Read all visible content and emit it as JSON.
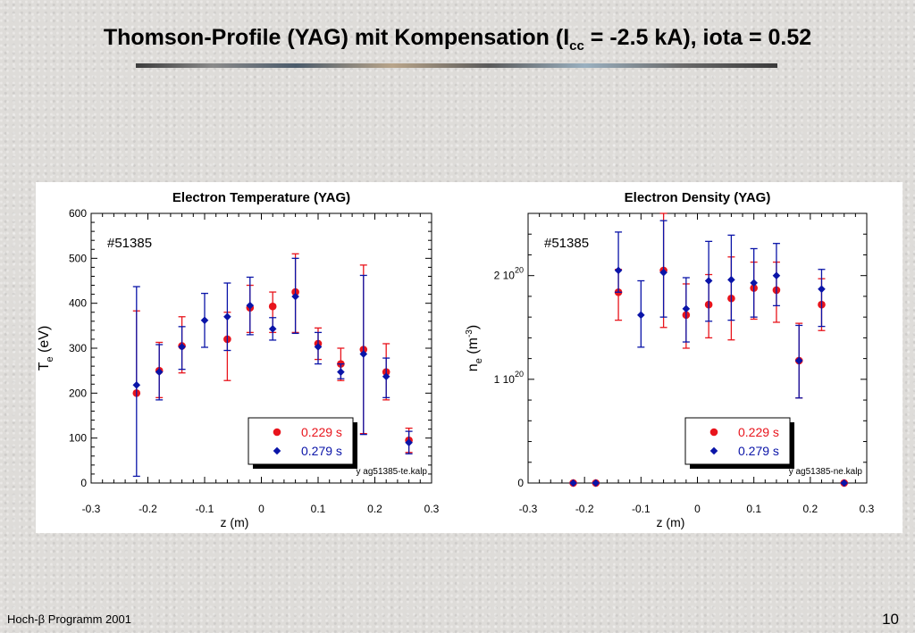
{
  "slide": {
    "title_prefix": "Thomson-Profile (YAG) mit Kompensation (I",
    "title_sub": "cc",
    "title_suffix": " = -2.5 kA), iota = 0.52",
    "footer": "Hoch-β Programm 2001",
    "page_number": "10"
  },
  "colors": {
    "red": "#e8141c",
    "blue": "#0a14a8"
  },
  "chart_data": [
    {
      "type": "scatter",
      "title": "Electron Temperature (YAG)",
      "xlabel": "z (m)",
      "ylabel_main": "T",
      "ylabel_sub": "e",
      "ylabel_unit": "(eV)",
      "annotation": "#51385",
      "file_label": "y ag51385-te.kalp",
      "xlim": [
        -0.3,
        0.3
      ],
      "ylim": [
        0,
        600
      ],
      "x_ticks": [
        -0.3,
        -0.2,
        -0.1,
        0,
        0.1,
        0.2,
        0.3
      ],
      "x_tick_labels": [
        "-0.3",
        "-0.2",
        "-0.1",
        "0",
        "0.1",
        "0.2",
        "0.3"
      ],
      "y_ticks": [
        0,
        100,
        200,
        300,
        400,
        500,
        600
      ],
      "y_tick_labels": [
        "0",
        "100",
        "200",
        "300",
        "400",
        "500",
        "600"
      ],
      "legend_position": "bottom-right",
      "series": [
        {
          "name": "0.229 s",
          "marker": "circle",
          "color": "#e8141c",
          "x": [
            -0.22,
            -0.18,
            -0.14,
            -0.06,
            -0.02,
            0.02,
            0.06,
            0.1,
            0.14,
            0.18,
            0.22,
            0.26
          ],
          "y": [
            200,
            250,
            305,
            320,
            390,
            393,
            425,
            310,
            265,
            297,
            247,
            95
          ],
          "err_low": [
            200,
            190,
            245,
            228,
            335,
            335,
            335,
            275,
            228,
            110,
            185,
            68
          ],
          "err_high": [
            383,
            313,
            370,
            380,
            440,
            425,
            510,
            345,
            300,
            485,
            310,
            122
          ]
        },
        {
          "name": "0.279 s",
          "marker": "diamond",
          "color": "#0a14a8",
          "x": [
            -0.22,
            -0.18,
            -0.14,
            -0.1,
            -0.06,
            -0.02,
            0.02,
            0.06,
            0.1,
            0.14,
            0.18,
            0.22,
            0.26
          ],
          "y": [
            218,
            247,
            303,
            362,
            370,
            395,
            343,
            415,
            303,
            247,
            287,
            237,
            90
          ],
          "err_low": [
            15,
            185,
            253,
            302,
            295,
            330,
            318,
            333,
            265,
            232,
            108,
            190,
            65
          ],
          "err_high": [
            437,
            308,
            348,
            422,
            445,
            458,
            368,
            500,
            335,
            265,
            462,
            278,
            115
          ]
        }
      ]
    },
    {
      "type": "scatter",
      "title": "Electron Density (YAG)",
      "xlabel": "z (m)",
      "ylabel_main": "n",
      "ylabel_sub": "e",
      "ylabel_unit": "(m",
      "ylabel_sup": "-3",
      "ylabel_close": ")",
      "annotation": "#51385",
      "file_label": "y ag51385-ne.kalp",
      "xlim": [
        -0.3,
        0.3
      ],
      "ylim": [
        0,
        2.6
      ],
      "x_ticks": [
        -0.3,
        -0.2,
        -0.1,
        0,
        0.1,
        0.2,
        0.3
      ],
      "x_tick_labels": [
        "-0.3",
        "-0.2",
        "-0.1",
        "0",
        "0.1",
        "0.2",
        "0.3"
      ],
      "y_ticks": [
        0,
        1,
        2
      ],
      "y_tick_labels": [
        {
          "base": "0",
          "sup": ""
        },
        {
          "base": "1 10",
          "sup": "20"
        },
        {
          "base": "2 10",
          "sup": "20"
        }
      ],
      "legend_position": "bottom-right",
      "series": [
        {
          "name": "0.229 s",
          "marker": "circle",
          "color": "#e8141c",
          "x": [
            -0.22,
            -0.18,
            -0.14,
            -0.06,
            -0.02,
            0.02,
            0.06,
            0.1,
            0.14,
            0.18,
            0.22,
            0.26
          ],
          "y": [
            0,
            0,
            1.84,
            2.05,
            1.62,
            1.72,
            1.78,
            1.88,
            1.86,
            1.18,
            1.72,
            0
          ],
          "err_low": [
            0,
            0,
            1.57,
            1.5,
            1.3,
            1.4,
            1.38,
            1.58,
            1.55,
            0.82,
            1.47,
            0
          ],
          "err_high": [
            0,
            0,
            2.06,
            2.6,
            1.92,
            2.01,
            2.18,
            2.13,
            2.13,
            1.54,
            1.97,
            0
          ]
        },
        {
          "name": "0.279 s",
          "marker": "diamond",
          "color": "#0a14a8",
          "x": [
            -0.22,
            -0.18,
            -0.14,
            -0.1,
            -0.06,
            -0.02,
            0.02,
            0.06,
            0.1,
            0.14,
            0.18,
            0.22,
            0.26
          ],
          "y": [
            0,
            0,
            2.05,
            1.62,
            2.03,
            1.68,
            1.95,
            1.96,
            1.93,
            2.0,
            1.18,
            1.87,
            0
          ],
          "err_low": [
            0,
            0,
            1.84,
            1.31,
            1.6,
            1.36,
            1.56,
            1.57,
            1.6,
            1.71,
            0.82,
            1.51,
            0
          ],
          "err_high": [
            0,
            0,
            2.42,
            1.95,
            2.53,
            1.98,
            2.33,
            2.39,
            2.26,
            2.31,
            1.52,
            2.06,
            0
          ]
        }
      ]
    }
  ]
}
